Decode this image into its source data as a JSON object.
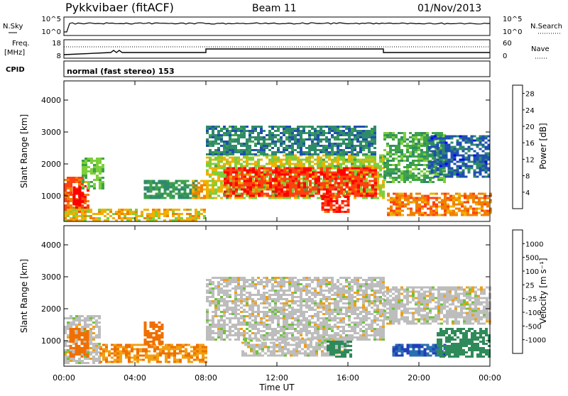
{
  "header": {
    "station": "Pykkvibaer (fitACF)",
    "beam": "Beam 11",
    "date": "01/Nov/2013"
  },
  "top_panels": {
    "nsky_label": "N.Sky",
    "nsky_ticks": [
      "10^5",
      "10^0"
    ],
    "nsearch_label": "N.Search",
    "nsearch_ticks": [
      "10^5",
      "10^0"
    ],
    "freq_label_1": "Freq.",
    "freq_label_2": "[MHz]",
    "freq_ticks": [
      "18",
      "8"
    ],
    "nave_label": "Nave",
    "nave_ticks": [
      "60",
      "0"
    ],
    "cpid_label": "CPID",
    "cpid_text": "normal (fast stereo) 153"
  },
  "colors": {
    "power_scale": [
      "#0000ff",
      "#1f4fb0",
      "#2f8a6a",
      "#3ea24a",
      "#7ccf3a",
      "#f0b000",
      "#f08000",
      "#ff4010",
      "#ff0000"
    ],
    "velocity_scale": [
      "#1f3fb8",
      "#2a6fb0",
      "#2f8a5a",
      "#6ec23c",
      "#bdbdbd",
      "#f0a010",
      "#f06f00",
      "#ff3000",
      "#ff0000"
    ]
  },
  "chart_data": [
    {
      "type": "heatmap",
      "quantity": "Power",
      "ylabel": "Slant Range [km]",
      "yticks": [
        "1000",
        "2000",
        "3000",
        "4000"
      ],
      "ylim": [
        200,
        4600
      ],
      "xlim": [
        0,
        24
      ],
      "colorbar": {
        "label": "Power [dB]",
        "ticks": [
          "4",
          "8",
          "12",
          "16",
          "20",
          "24",
          "28"
        ],
        "range": [
          0,
          30
        ]
      },
      "regions": [
        {
          "t0": 0.0,
          "t1": 1.4,
          "r0": 500,
          "r1": 1600,
          "level": 24
        },
        {
          "t0": 0.5,
          "t1": 1.1,
          "r0": 700,
          "r1": 1300,
          "level": 30
        },
        {
          "t0": 1.0,
          "t1": 2.2,
          "r0": 1200,
          "r1": 2200,
          "level": 14
        },
        {
          "t0": 0.0,
          "t1": 8.0,
          "r0": 250,
          "r1": 600,
          "level": 18
        },
        {
          "t0": 4.5,
          "t1": 7.5,
          "r0": 900,
          "r1": 1500,
          "level": 10
        },
        {
          "t0": 7.2,
          "t1": 8.4,
          "r0": 900,
          "r1": 1500,
          "level": 20
        },
        {
          "t0": 8.0,
          "t1": 18.0,
          "r0": 900,
          "r1": 2300,
          "level": 16
        },
        {
          "t0": 9.0,
          "t1": 17.5,
          "r0": 1000,
          "r1": 1900,
          "level": 26
        },
        {
          "t0": 8.0,
          "t1": 17.5,
          "r0": 2300,
          "r1": 3200,
          "level": 8
        },
        {
          "t0": 14.5,
          "t1": 16.0,
          "r0": 500,
          "r1": 1000,
          "level": 26
        },
        {
          "t0": 18.0,
          "t1": 21.5,
          "r0": 1400,
          "r1": 3000,
          "level": 12
        },
        {
          "t0": 18.2,
          "t1": 24.0,
          "r0": 400,
          "r1": 1100,
          "level": 22
        },
        {
          "t0": 20.5,
          "t1": 24.0,
          "r0": 1600,
          "r1": 2900,
          "level": 6
        }
      ]
    },
    {
      "type": "heatmap",
      "quantity": "Velocity",
      "ylabel": "Slant Range [km]",
      "yticks": [
        "1000",
        "2000",
        "3000",
        "4000"
      ],
      "ylim": [
        200,
        4600
      ],
      "xlabel": "Time UT",
      "xticks": [
        "00:00",
        "04:00",
        "08:00",
        "12:00",
        "16:00",
        "20:00",
        "00:00"
      ],
      "xlim": [
        0,
        24
      ],
      "colorbar": {
        "label": "Velocity [m s⁻¹]",
        "ticks": [
          "1000",
          "500",
          "100",
          "25",
          "-25",
          "-100",
          "-500",
          "-1000"
        ],
        "range": [
          -1000,
          1000
        ]
      },
      "regions": [
        {
          "t0": 0.0,
          "t1": 2.0,
          "r0": 300,
          "r1": 1800,
          "level": 0
        },
        {
          "t0": 0.3,
          "t1": 1.3,
          "r0": 500,
          "r1": 1400,
          "level": -200
        },
        {
          "t0": 2.0,
          "t1": 8.0,
          "r0": 300,
          "r1": 900,
          "level": -100
        },
        {
          "t0": 4.5,
          "t1": 5.5,
          "r0": 900,
          "r1": 1600,
          "level": -300
        },
        {
          "t0": 8.0,
          "t1": 18.0,
          "r0": 1000,
          "r1": 3000,
          "level": 0
        },
        {
          "t0": 10.0,
          "t1": 16.0,
          "r0": 500,
          "r1": 1100,
          "level": 0
        },
        {
          "t0": 14.8,
          "t1": 16.2,
          "r0": 500,
          "r1": 1000,
          "level": 150
        },
        {
          "t0": 18.5,
          "t1": 21.5,
          "r0": 500,
          "r1": 900,
          "level": 800
        },
        {
          "t0": 18.0,
          "t1": 24.0,
          "r0": 1500,
          "r1": 2700,
          "level": 0
        },
        {
          "t0": 21.0,
          "t1": 24.0,
          "r0": 500,
          "r1": 1400,
          "level": 300
        }
      ]
    }
  ]
}
